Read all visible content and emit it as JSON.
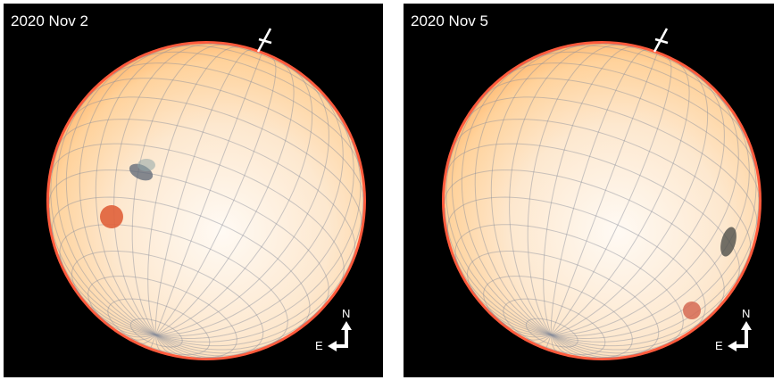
{
  "panels": [
    {
      "date_label": "2020 Nov 2",
      "features": [
        {
          "type": "dark-spot",
          "color": "#5b6675"
        },
        {
          "type": "dark-spot-faint",
          "color": "#8fa5a8"
        },
        {
          "type": "red-spot",
          "color": "#e0603a"
        }
      ],
      "compass": {
        "north": "N",
        "east": "E"
      }
    },
    {
      "date_label": "2020 Nov 5",
      "features": [
        {
          "type": "dark-spot",
          "color": "#4e4f4a"
        },
        {
          "type": "red-spot",
          "color": "#d56a54"
        }
      ],
      "compass": {
        "north": "N",
        "east": "E"
      }
    }
  ],
  "colors": {
    "background": "#000000",
    "disk_center": "#fffaf4",
    "disk_edge": "#ffc98a",
    "limb": "#ff5a3c",
    "grid": "#8a8f9c",
    "text": "#ffffff"
  },
  "icons": [
    "rotation-axis-icon",
    "compass-arrow-icon"
  ]
}
